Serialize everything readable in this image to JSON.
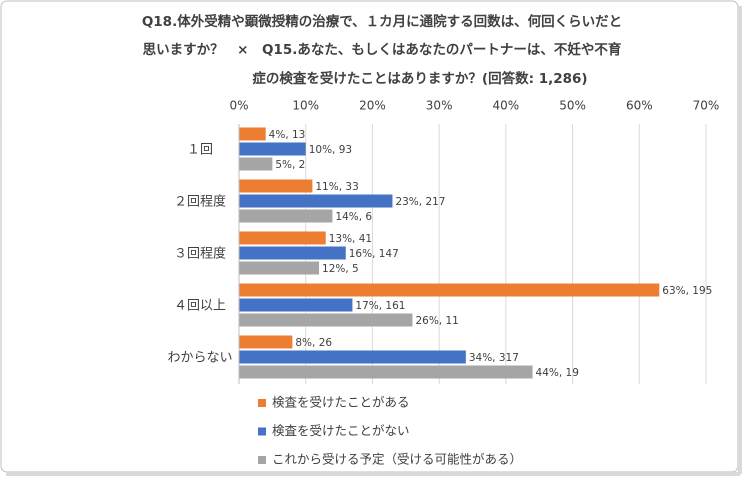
{
  "chart_data": {
    "type": "hbar",
    "title": [
      "Q18.体外受精や顕微授精の治療で、１カ月に通院する回数は、何回くらいだと",
      "思いますか？　×　Q15.あなた、もしくはあなたのパートナーは、不妊や不育",
      "症の検査を受けたことはありますか？(回答数: 1,286)"
    ],
    "categories": [
      "１回",
      "２回程度",
      "３回程度",
      "４回以上",
      "わからない"
    ],
    "series": [
      {
        "name": "検査を受けたことがある",
        "color": "#ed7d31",
        "values": [
          4,
          11,
          13,
          63,
          8
        ],
        "value_labels": [
          "4%, 13",
          "11%, 33",
          "13%, 41",
          "63%, 195",
          "8%, 26"
        ]
      },
      {
        "name": "検査を受けたことがない",
        "color": "#4472c4",
        "values": [
          10,
          23,
          16,
          17,
          34
        ],
        "value_labels": [
          "10%, 93",
          "23%, 217",
          "16%, 147",
          "17%, 161",
          "34%, 317"
        ]
      },
      {
        "name": "これから受ける予定（受ける可能性がある）",
        "color": "#a5a5a5",
        "values": [
          5,
          14,
          12,
          26,
          44
        ],
        "value_labels": [
          "5%, 2",
          "14%, 6",
          "12%, 5",
          "26%, 11",
          "44%, 19"
        ]
      }
    ],
    "xlim": [
      0,
      70
    ],
    "xticks": [
      {
        "value": 0,
        "label": "0%"
      },
      {
        "value": 10,
        "label": "10%"
      },
      {
        "value": 20,
        "label": "20%"
      },
      {
        "value": 30,
        "label": "30%"
      },
      {
        "value": 40,
        "label": "40%"
      },
      {
        "value": 50,
        "label": "50%"
      },
      {
        "value": 60,
        "label": "60%"
      },
      {
        "value": 70,
        "label": "70%"
      }
    ],
    "grid": true
  }
}
